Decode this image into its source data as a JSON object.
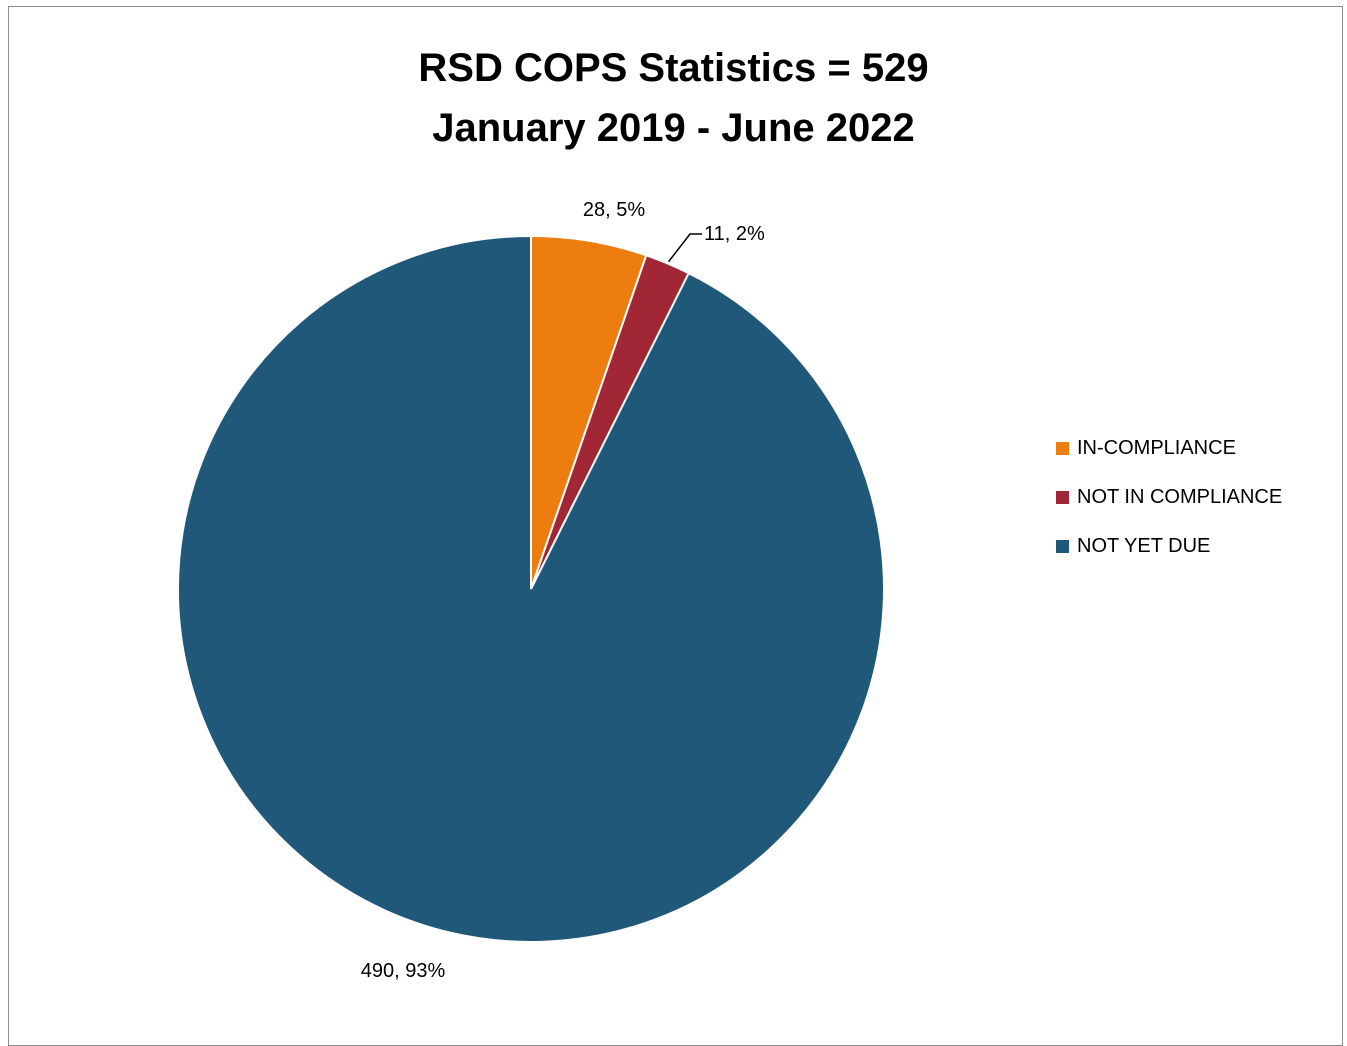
{
  "chart_data": {
    "type": "pie",
    "title": "RSD COPS Statistics  = 529",
    "subtitle": "January 2019 - June 2022",
    "slices": [
      {
        "name": "IN-COMPLIANCE",
        "value": 28,
        "percent": "5%",
        "label": "28, 5%",
        "color": "#ed7d0e"
      },
      {
        "name": "NOT IN COMPLIANCE",
        "value": 11,
        "percent": "2%",
        "label": "11, 2%",
        "color": "#a12736"
      },
      {
        "name": "NOT YET DUE",
        "value": 490,
        "percent": "93%",
        "label": "490, 93%",
        "color": "#1f5878"
      }
    ],
    "legend_position": "right"
  }
}
